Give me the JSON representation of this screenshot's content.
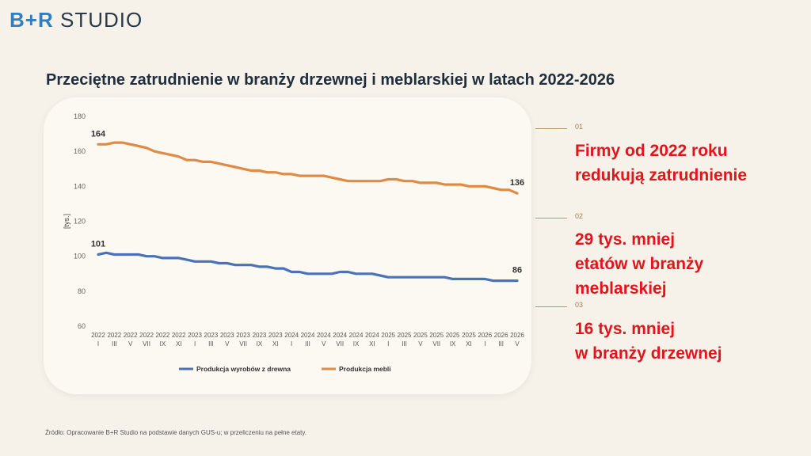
{
  "brand": {
    "bp": "B+R",
    "studio": "STUDIO"
  },
  "title": "Przeciętne zatrudnienie w branży drzewnej i meblarskiej w latach 2022-2026",
  "notes": [
    {
      "num": "01",
      "lines": [
        "Firmy od 2022 roku",
        "redukują zatrudnienie"
      ]
    },
    {
      "num": "02",
      "lines": [
        "29 tys. mniej",
        "etatów w branży",
        "meblarskiej"
      ]
    },
    {
      "num": "03",
      "lines": [
        "16 tys. mniej",
        "w branży drzewnej"
      ]
    }
  ],
  "source": "Źródło: Opracowanie B+R Studio na podstawie danych GUS-u; w przeliczeniu na pełne etaty.",
  "colors": {
    "wood": "#4a72b8",
    "furniture": "#e08a43",
    "accent": "#e3141b"
  },
  "chart_data": {
    "type": "line",
    "ylabel": "[tys.]",
    "ylim": [
      60,
      180
    ],
    "yticks": [
      60,
      80,
      100,
      120,
      140,
      160,
      180
    ],
    "grid": false,
    "legend_position": "bottom",
    "x": [
      "2022 I",
      "2022 II",
      "2022 III",
      "2022 IV",
      "2022 V",
      "2022 VI",
      "2022 VII",
      "2022 VIII",
      "2022 IX",
      "2022 X",
      "2022 XI",
      "2022 XII",
      "2023 I",
      "2023 II",
      "2023 III",
      "2023 IV",
      "2023 V",
      "2023 VI",
      "2023 VII",
      "2023 VIII",
      "2023 IX",
      "2023 X",
      "2023 XI",
      "2023 XII",
      "2024 I",
      "2024 II",
      "2024 III",
      "2024 IV",
      "2024 V",
      "2024 VI",
      "2024 VII",
      "2024 VIII",
      "2024 IX",
      "2024 X",
      "2024 XI",
      "2024 XII",
      "2025 I",
      "2025 II",
      "2025 III",
      "2025 IV",
      "2025 V",
      "2025 VI",
      "2025 VII",
      "2025 VIII",
      "2025 IX",
      "2025 X",
      "2025 XI",
      "2025 XII",
      "2026 I",
      "2026 II",
      "2026 III",
      "2026 IV",
      "2026 V"
    ],
    "tick_labels": [
      {
        "year": "2022",
        "month": "I"
      },
      {
        "year": "2022",
        "month": "III"
      },
      {
        "year": "2022",
        "month": "V"
      },
      {
        "year": "2022",
        "month": "VII"
      },
      {
        "year": "2022",
        "month": "IX"
      },
      {
        "year": "2022",
        "month": "XI"
      },
      {
        "year": "2023",
        "month": "I"
      },
      {
        "year": "2023",
        "month": "III"
      },
      {
        "year": "2023",
        "month": "V"
      },
      {
        "year": "2023",
        "month": "VII"
      },
      {
        "year": "2023",
        "month": "IX"
      },
      {
        "year": "2023",
        "month": "XI"
      },
      {
        "year": "2024",
        "month": "I"
      },
      {
        "year": "2024",
        "month": "III"
      },
      {
        "year": "2024",
        "month": "V"
      },
      {
        "year": "2024",
        "month": "VII"
      },
      {
        "year": "2024",
        "month": "IX"
      },
      {
        "year": "2024",
        "month": "XI"
      },
      {
        "year": "2025",
        "month": "I"
      },
      {
        "year": "2025",
        "month": "III"
      },
      {
        "year": "2025",
        "month": "V"
      },
      {
        "year": "2025",
        "month": "VII"
      },
      {
        "year": "2025",
        "month": "IX"
      },
      {
        "year": "2025",
        "month": "XI"
      },
      {
        "year": "2026",
        "month": "I"
      },
      {
        "year": "2026",
        "month": "III"
      },
      {
        "year": "2026",
        "month": "V"
      }
    ],
    "series": [
      {
        "name": "Produkcja wyrobów z drewna",
        "color": "#4a72b8",
        "values": [
          101,
          102,
          101,
          101,
          101,
          101,
          100,
          100,
          99,
          99,
          99,
          98,
          97,
          97,
          97,
          96,
          96,
          95,
          95,
          95,
          94,
          94,
          93,
          93,
          91,
          91,
          90,
          90,
          90,
          90,
          91,
          91,
          90,
          90,
          90,
          89,
          88,
          88,
          88,
          88,
          88,
          88,
          88,
          88,
          87,
          87,
          87,
          87,
          87,
          86,
          86,
          86,
          86
        ],
        "labels": [
          {
            "index": 0,
            "text": "101"
          },
          {
            "index": 52,
            "text": "86"
          }
        ]
      },
      {
        "name": "Produkcja mebli",
        "color": "#e08a43",
        "values": [
          164,
          164,
          165,
          165,
          164,
          163,
          162,
          160,
          159,
          158,
          157,
          155,
          155,
          154,
          154,
          153,
          152,
          151,
          150,
          149,
          149,
          148,
          148,
          147,
          147,
          146,
          146,
          146,
          146,
          145,
          144,
          143,
          143,
          143,
          143,
          143,
          144,
          144,
          143,
          143,
          142,
          142,
          142,
          141,
          141,
          141,
          140,
          140,
          140,
          139,
          138,
          138,
          136
        ],
        "labels": [
          {
            "index": 0,
            "text": "164"
          },
          {
            "index": 52,
            "text": "136"
          }
        ]
      }
    ]
  }
}
